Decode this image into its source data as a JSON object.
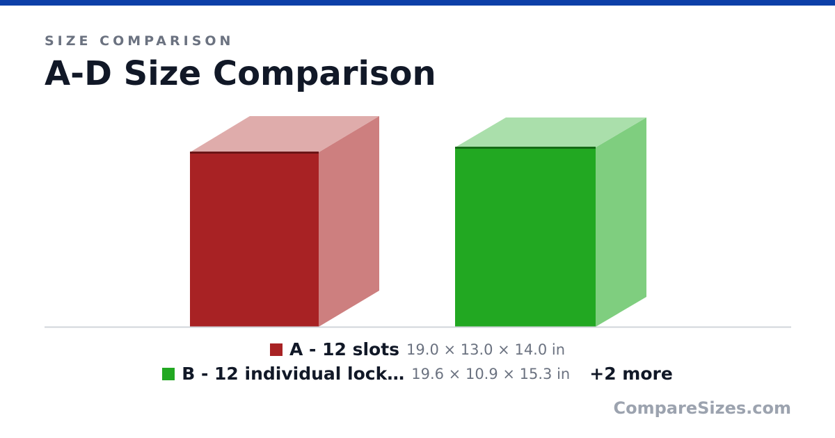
{
  "header": {
    "kicker": "SIZE COMPARISON",
    "title": "A-D Size Comparison"
  },
  "items": [
    {
      "name": "A - 12 slots",
      "dimensions": "19.0 × 13.0 × 14.0 in"
    },
    {
      "name": "B - 12 individual lock…",
      "dimensions": "19.6 × 10.9 × 15.3 in"
    }
  ],
  "more": "+2 more",
  "footer": "CompareSizes.com"
}
